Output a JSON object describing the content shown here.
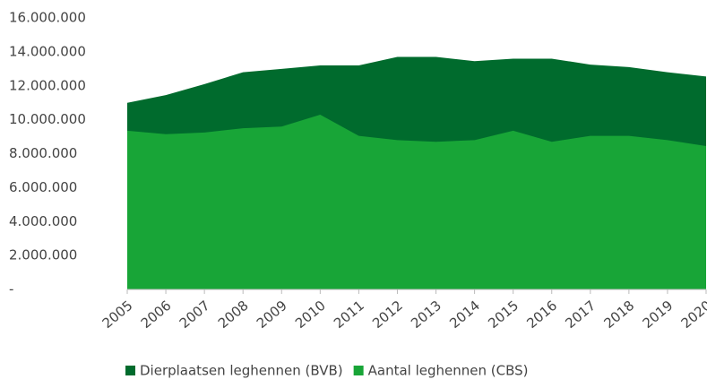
{
  "chart_data": {
    "type": "area",
    "categories": [
      "2005",
      "2006",
      "2007",
      "2008",
      "2009",
      "2010",
      "2011",
      "2012",
      "2013",
      "2014",
      "2015",
      "2016",
      "2017",
      "2018",
      "2019",
      "2020"
    ],
    "series": [
      {
        "name": "Dierplaatsen leghennen (BVB)",
        "color": "#006b2d",
        "values": [
          11000000,
          11450000,
          12100000,
          12800000,
          13000000,
          13200000,
          13200000,
          13700000,
          13700000,
          13450000,
          13600000,
          13600000,
          13250000,
          13100000,
          12800000,
          12550000
        ]
      },
      {
        "name": "Aantal leghennen (CBS)",
        "color": "#18a537",
        "values": [
          9350000,
          9150000,
          9250000,
          9500000,
          9600000,
          10300000,
          9050000,
          8800000,
          8700000,
          8800000,
          9350000,
          8700000,
          9050000,
          9050000,
          8800000,
          8450000
        ]
      }
    ],
    "ylim": [
      0,
      16000000
    ],
    "yticks": [
      {
        "value": 0,
        "label": "-"
      },
      {
        "value": 2000000,
        "label": "2.000.000"
      },
      {
        "value": 4000000,
        "label": "4.000.000"
      },
      {
        "value": 6000000,
        "label": "6.000.000"
      },
      {
        "value": 8000000,
        "label": "8.000.000"
      },
      {
        "value": 10000000,
        "label": "10.000.000"
      },
      {
        "value": 12000000,
        "label": "12.000.000"
      },
      {
        "value": 14000000,
        "label": "14.000.000"
      },
      {
        "value": 16000000,
        "label": "16.000.000"
      }
    ],
    "grid": false,
    "legend": "bottom"
  }
}
